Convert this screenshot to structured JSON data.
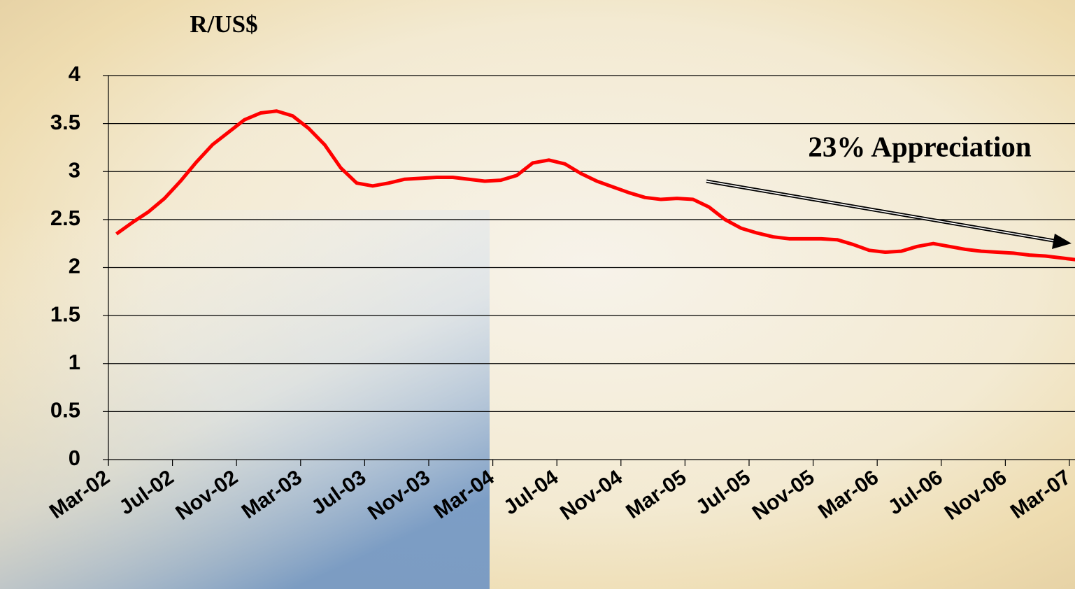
{
  "chart_data": {
    "type": "line",
    "title": "R/US$",
    "annotation": "23% Appreciation",
    "categories": [
      "Mar-02",
      null,
      null,
      null,
      "Jul-02",
      null,
      null,
      null,
      "Nov-02",
      null,
      null,
      null,
      "Mar-03",
      null,
      null,
      null,
      "Jul-03",
      null,
      null,
      null,
      "Nov-03",
      null,
      null,
      null,
      "Mar-04",
      null,
      null,
      null,
      "Jul-04",
      null,
      null,
      null,
      "Nov-04",
      null,
      null,
      null,
      "Mar-05",
      null,
      null,
      null,
      "Jul-05",
      null,
      null,
      null,
      "Nov-05",
      null,
      null,
      null,
      "Mar-06",
      null,
      null,
      null,
      "Jul-06",
      null,
      null,
      null,
      "Nov-06",
      null,
      null,
      null,
      "Mar-07"
    ],
    "series": [
      {
        "color": "#ff0000",
        "values": [
          2.35,
          2.47,
          2.58,
          2.72,
          2.9,
          3.1,
          3.28,
          3.41,
          3.54,
          3.61,
          3.63,
          3.58,
          3.45,
          3.28,
          3.04,
          2.88,
          2.85,
          2.88,
          2.92,
          2.93,
          2.94,
          2.94,
          2.92,
          2.9,
          2.91,
          2.96,
          3.09,
          3.12,
          3.08,
          2.98,
          2.9,
          2.84,
          2.78,
          2.73,
          2.71,
          2.72,
          2.71,
          2.63,
          2.5,
          2.41,
          2.36,
          2.32,
          2.3,
          2.3,
          2.3,
          2.29,
          2.24,
          2.18,
          2.16,
          2.17,
          2.22,
          2.25,
          2.22,
          2.19,
          2.17,
          2.16,
          2.15,
          2.13,
          2.12,
          2.1,
          2.08
        ]
      }
    ],
    "ylim": [
      0,
      4
    ],
    "yticks": [
      0,
      0.5,
      1,
      1.5,
      2,
      2.5,
      3,
      3.5,
      4
    ],
    "grid": true
  }
}
